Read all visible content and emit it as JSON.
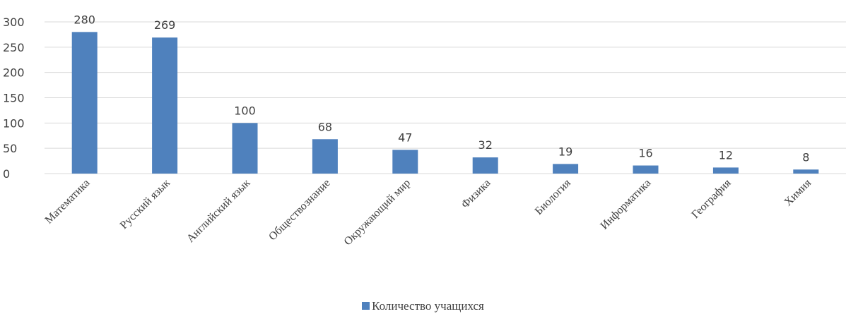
{
  "chart_data": {
    "type": "bar",
    "categories": [
      "Математика",
      "Русский язык",
      "Английский язык",
      "Обществознание",
      "Окружающий мир",
      "Физика",
      "Биология",
      "Информатика",
      "География",
      "Химия"
    ],
    "series": [
      {
        "name": "Количество учащихся",
        "values": [
          280,
          269,
          100,
          68,
          47,
          32,
          19,
          16,
          12,
          8
        ],
        "color": "#4f81bd"
      }
    ],
    "yticks": [
      0,
      50,
      100,
      150,
      200,
      250,
      300
    ],
    "ylim": [
      0,
      300
    ],
    "grid": true,
    "data_labels": true,
    "legend_position": "bottom",
    "title": "",
    "xlabel": "",
    "ylabel": ""
  },
  "legend": {
    "label": "Количество учащихся",
    "color": "#4f81bd"
  }
}
